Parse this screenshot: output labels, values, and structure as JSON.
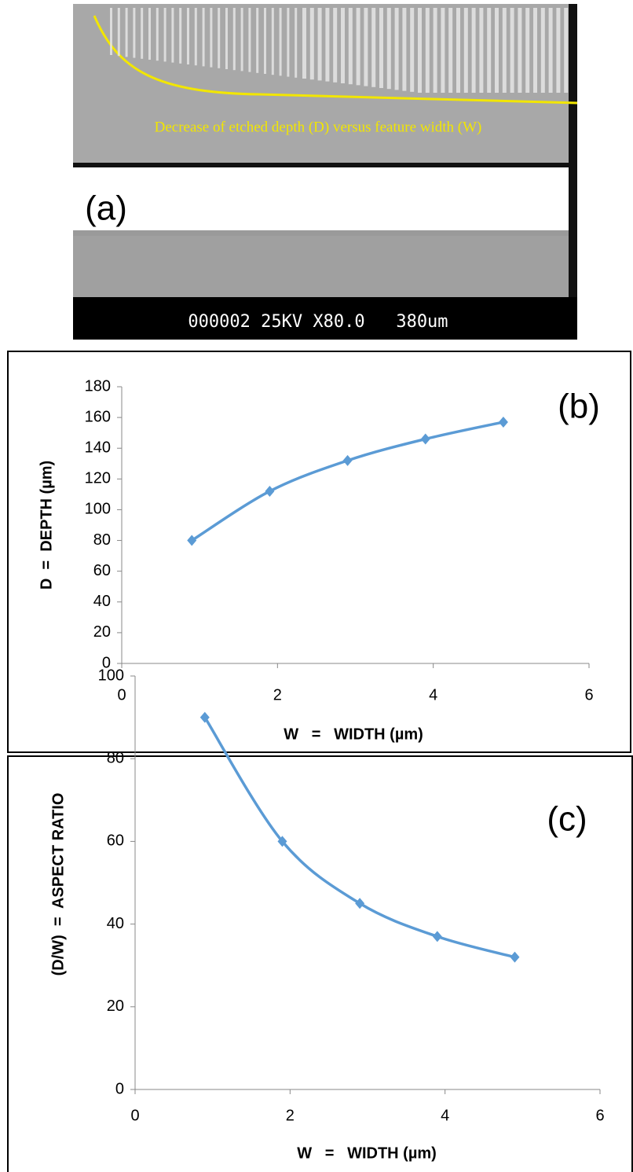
{
  "image_a": {
    "caption": "Decrease of etched depth (D) versus feature width (W)",
    "label": "(a)",
    "scale_bar": "000002 25KV X80.0   380um"
  },
  "chart_data": [
    {
      "type": "line",
      "smooth": true,
      "label": "(b)",
      "x_label": "W   =   WIDTH (µm)",
      "y_label": "D  =  DEPTH (µm)",
      "x": [
        0.9,
        1.9,
        2.9,
        3.9,
        4.9
      ],
      "values": [
        80,
        112,
        132,
        146,
        157
      ],
      "color": "#5b9bd5",
      "xlim": [
        0,
        6
      ],
      "xticks": [
        0,
        2,
        4,
        6
      ],
      "ylim": [
        0,
        180
      ],
      "yticks": [
        0,
        20,
        40,
        60,
        80,
        100,
        120,
        140,
        160,
        180
      ]
    },
    {
      "type": "line",
      "smooth": true,
      "label": "(c)",
      "x_label": "W   =   WIDTH (µm)",
      "y_label": "(D/W)  =  ASPECT RATIO",
      "x": [
        0.9,
        1.9,
        2.9,
        3.9,
        4.9
      ],
      "values": [
        90,
        60,
        45,
        37,
        32
      ],
      "color": "#5b9bd5",
      "xlim": [
        0,
        6
      ],
      "xticks": [
        0,
        2,
        4,
        6
      ],
      "ylim": [
        0,
        100
      ],
      "yticks": [
        0,
        20,
        40,
        60,
        80,
        100
      ]
    }
  ]
}
